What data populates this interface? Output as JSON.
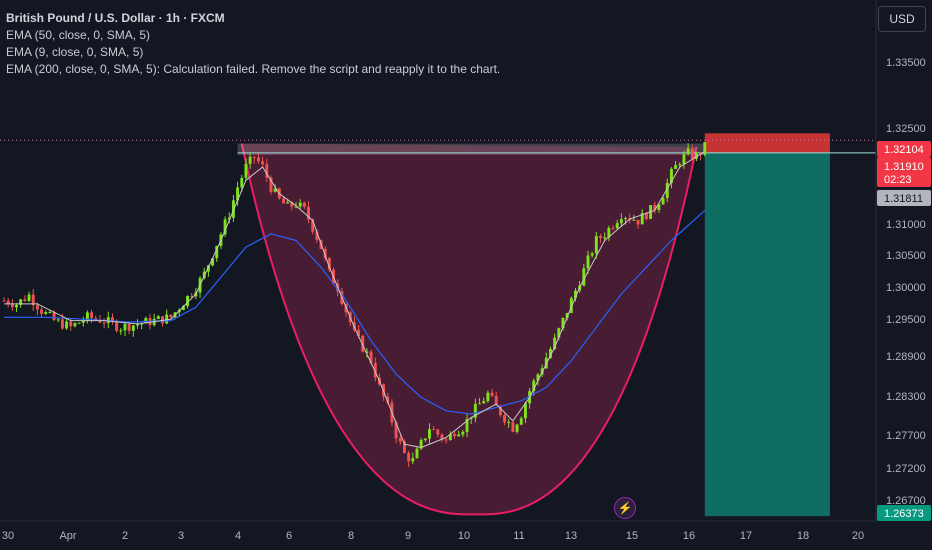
{
  "legend": {
    "symbol": "British Pound / U.S. Dollar · 1h · FXCM",
    "lines": [
      "EMA (50, close, 0, SMA, 5)",
      "EMA (9, close, 0, SMA, 5)",
      "EMA (200, close, 0, SMA, 5): Calculation failed. Remove the script and reapply it to the chart."
    ]
  },
  "currency_button": "USD",
  "bolt_icon": "lightning-icon",
  "colors": {
    "background": "#131722",
    "up_candle": "#7ee21b",
    "down_candle": "#ef5350",
    "ema_fast": "#c9c9c9",
    "ema_slow": "#2962ff",
    "cup_fill": "#5b1f3a",
    "cup_stroke": "#e91e63",
    "target_zone": "#0f6e64",
    "stop_zone": "#e53935"
  },
  "chart_data": {
    "type": "candlestick",
    "y_ticks": [
      "1.33500",
      "1.32500",
      "1.31000",
      "1.30500",
      "1.30000",
      "1.29500",
      "1.28900",
      "1.28300",
      "1.27700",
      "1.27200",
      "1.26700"
    ],
    "x_ticks": [
      "30",
      "Apr",
      "2",
      "3",
      "4",
      "6",
      "8",
      "9",
      "10",
      "11",
      "13",
      "15",
      "16",
      "17",
      "18",
      "20"
    ],
    "price_labels": {
      "stop": "1.32104",
      "last": "1.31910",
      "countdown": "02:23",
      "entry": "1.31811",
      "target": "1.26373"
    },
    "ylim": [
      1.263,
      1.341
    ],
    "price_path": [
      [
        0,
        1.296
      ],
      [
        3,
        1.2955
      ],
      [
        6,
        1.2968
      ],
      [
        9,
        1.2945
      ],
      [
        12,
        1.293
      ],
      [
        16,
        1.292
      ],
      [
        20,
        1.2935
      ],
      [
        24,
        1.293
      ],
      [
        28,
        1.292
      ],
      [
        32,
        1.2925
      ],
      [
        36,
        1.293
      ],
      [
        40,
        1.2935
      ],
      [
        42,
        1.295
      ],
      [
        44,
        1.2965
      ],
      [
        46,
        1.298
      ],
      [
        48,
        1.3
      ],
      [
        50,
        1.303
      ],
      [
        52,
        1.306
      ],
      [
        54,
        1.309
      ],
      [
        56,
        1.313
      ],
      [
        58,
        1.316
      ],
      [
        60,
        1.3175
      ],
      [
        62,
        1.316
      ],
      [
        64,
        1.313
      ],
      [
        66,
        1.311
      ],
      [
        68,
        1.31
      ],
      [
        70,
        1.3105
      ],
      [
        72,
        1.3095
      ],
      [
        74,
        1.307
      ],
      [
        76,
        1.304
      ],
      [
        78,
        1.3
      ],
      [
        80,
        1.298
      ],
      [
        82,
        1.2945
      ],
      [
        84,
        1.291
      ],
      [
        86,
        1.289
      ],
      [
        88,
        1.287
      ],
      [
        90,
        1.283
      ],
      [
        92,
        1.28
      ],
      [
        94,
        1.276
      ],
      [
        96,
        1.273
      ],
      [
        98,
        1.272
      ],
      [
        100,
        1.2745
      ],
      [
        102,
        1.277
      ],
      [
        104,
        1.276
      ],
      [
        106,
        1.275
      ],
      [
        108,
        1.2765
      ],
      [
        110,
        1.277
      ],
      [
        112,
        1.279
      ],
      [
        114,
        1.2805
      ],
      [
        116,
        1.282
      ],
      [
        118,
        1.28
      ],
      [
        120,
        1.2785
      ],
      [
        122,
        1.277
      ],
      [
        124,
        1.279
      ],
      [
        126,
        1.2825
      ],
      [
        128,
        1.285
      ],
      [
        130,
        1.2875
      ],
      [
        132,
        1.29
      ],
      [
        134,
        1.293
      ],
      [
        136,
        1.296
      ],
      [
        138,
        1.299
      ],
      [
        140,
        1.302
      ],
      [
        142,
        1.305
      ],
      [
        144,
        1.306
      ],
      [
        146,
        1.3075
      ],
      [
        148,
        1.309
      ],
      [
        150,
        1.3085
      ],
      [
        152,
        1.308
      ],
      [
        154,
        1.309
      ],
      [
        156,
        1.31
      ],
      [
        158,
        1.312
      ],
      [
        160,
        1.315
      ],
      [
        162,
        1.317
      ],
      [
        164,
        1.318
      ],
      [
        166,
        1.3175
      ],
      [
        168,
        1.319
      ]
    ],
    "ema_fast_path": [
      [
        0,
        1.2955
      ],
      [
        8,
        1.2955
      ],
      [
        16,
        1.293
      ],
      [
        24,
        1.293
      ],
      [
        32,
        1.2925
      ],
      [
        40,
        1.2932
      ],
      [
        46,
        1.297
      ],
      [
        52,
        1.305
      ],
      [
        58,
        1.314
      ],
      [
        62,
        1.316
      ],
      [
        66,
        1.312
      ],
      [
        70,
        1.3102
      ],
      [
        74,
        1.308
      ],
      [
        78,
        1.301
      ],
      [
        84,
        1.292
      ],
      [
        90,
        1.284
      ],
      [
        96,
        1.2745
      ],
      [
        100,
        1.274
      ],
      [
        106,
        1.2755
      ],
      [
        112,
        1.2785
      ],
      [
        118,
        1.2805
      ],
      [
        122,
        1.278
      ],
      [
        126,
        1.2815
      ],
      [
        132,
        1.289
      ],
      [
        138,
        1.298
      ],
      [
        144,
        1.305
      ],
      [
        150,
        1.3082
      ],
      [
        156,
        1.3095
      ],
      [
        162,
        1.316
      ],
      [
        168,
        1.3183
      ]
    ],
    "ema_slow_path": [
      [
        0,
        1.2935
      ],
      [
        10,
        1.2935
      ],
      [
        20,
        1.2932
      ],
      [
        30,
        1.2928
      ],
      [
        40,
        1.293
      ],
      [
        46,
        1.295
      ],
      [
        52,
        1.2995
      ],
      [
        58,
        1.304
      ],
      [
        64,
        1.306
      ],
      [
        70,
        1.305
      ],
      [
        76,
        1.301
      ],
      [
        82,
        1.296
      ],
      [
        88,
        1.29
      ],
      [
        94,
        1.285
      ],
      [
        100,
        1.2815
      ],
      [
        106,
        1.2795
      ],
      [
        112,
        1.279
      ],
      [
        118,
        1.28
      ],
      [
        124,
        1.281
      ],
      [
        130,
        1.283
      ],
      [
        136,
        1.287
      ],
      [
        142,
        1.292
      ],
      [
        148,
        1.297
      ],
      [
        154,
        1.301
      ],
      [
        160,
        1.305
      ],
      [
        168,
        1.3095
      ]
    ],
    "cup_arc": {
      "left": [
        57,
        1.3195
      ],
      "bottom": [
        113,
        1.264
      ],
      "right": [
        166,
        1.319
      ]
    },
    "resistance_band": [
      1.3178,
      1.3195
    ],
    "position": {
      "start": 168,
      "end": 198,
      "entry": 1.31811,
      "stop": 1.32104,
      "target": 1.26373
    }
  }
}
